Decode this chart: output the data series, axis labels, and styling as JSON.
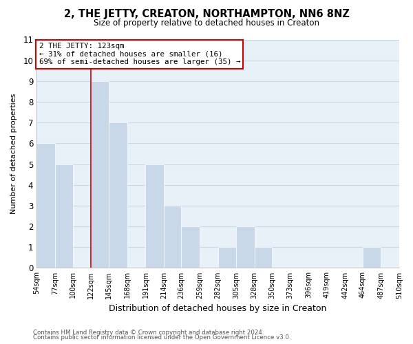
{
  "title": "2, THE JETTY, CREATON, NORTHAMPTON, NN6 8NZ",
  "subtitle": "Size of property relative to detached houses in Creaton",
  "xlabel": "Distribution of detached houses by size in Creaton",
  "ylabel": "Number of detached properties",
  "footer_line1": "Contains HM Land Registry data © Crown copyright and database right 2024.",
  "footer_line2": "Contains public sector information licensed under the Open Government Licence v3.0.",
  "bin_edges": [
    54,
    77,
    100,
    122,
    145,
    168,
    191,
    214,
    236,
    259,
    282,
    305,
    328,
    350,
    373,
    396,
    419,
    442,
    464,
    487,
    510
  ],
  "bin_labels": [
    "54sqm",
    "77sqm",
    "100sqm",
    "122sqm",
    "145sqm",
    "168sqm",
    "191sqm",
    "214sqm",
    "236sqm",
    "259sqm",
    "282sqm",
    "305sqm",
    "328sqm",
    "350sqm",
    "373sqm",
    "396sqm",
    "419sqm",
    "442sqm",
    "464sqm",
    "487sqm",
    "510sqm"
  ],
  "counts": [
    6,
    5,
    0,
    9,
    7,
    0,
    5,
    3,
    2,
    0,
    1,
    2,
    1,
    0,
    0,
    0,
    0,
    0,
    1,
    0
  ],
  "bar_color": "#c8d8e8",
  "bar_edge_color": "#ffffff",
  "grid_color": "#c8d8e8",
  "bg_color": "#ffffff",
  "plot_bg_color": "#e8f0f8",
  "red_line_x": 122,
  "annotation_title": "2 THE JETTY: 123sqm",
  "annotation_line1": "← 31% of detached houses are smaller (16)",
  "annotation_line2": "69% of semi-detached houses are larger (35) →",
  "annotation_box_color": "#ffffff",
  "annotation_box_edge": "#cc0000",
  "red_line_color": "#cc0000",
  "ylim": [
    0,
    11
  ],
  "yticks": [
    0,
    1,
    2,
    3,
    4,
    5,
    6,
    7,
    8,
    9,
    10,
    11
  ]
}
